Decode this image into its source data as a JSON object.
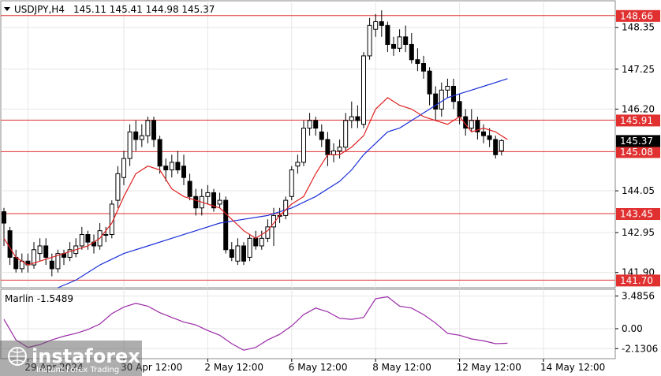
{
  "chart_data": [
    {
      "type": "candlestick",
      "symbol": "USDJPY,H4",
      "ohlc_header": "145.11 145.41 144.98 145.37",
      "y_range": [
        141.5,
        149.05
      ],
      "y_ticks": [
        "148.35",
        "147.25",
        "146.20",
        "144.05",
        "142.95",
        "141.90"
      ],
      "x_ticks": [
        {
          "label": "29 Apr 2024",
          "index": 4
        },
        {
          "label": "30 Apr 12:00",
          "index": 20
        },
        {
          "label": "2 May 12:00",
          "index": 34
        },
        {
          "label": "6 May 12:00",
          "index": 48
        },
        {
          "label": "8 May 12:00",
          "index": 62
        },
        {
          "label": "12 May 12:00",
          "index": 76
        },
        {
          "label": "14 May 12:00",
          "index": 90
        }
      ],
      "levels": [
        {
          "value": 148.66,
          "label": "148.66"
        },
        {
          "value": 145.91,
          "label": "145.91"
        },
        {
          "value": 145.08,
          "label": "145.08"
        },
        {
          "value": 143.45,
          "label": "143.45"
        },
        {
          "value": 141.7,
          "label": "141.70"
        }
      ],
      "last_price": {
        "value": 145.37,
        "label": "145.37"
      },
      "candles": [
        [
          143.5,
          143.2,
          143.6,
          142.6
        ],
        [
          143.0,
          142.3,
          143.1,
          142.1
        ],
        [
          142.3,
          142.0,
          142.5,
          141.9
        ],
        [
          142.0,
          142.2,
          142.4,
          141.9
        ],
        [
          142.2,
          142.1,
          142.4,
          141.9
        ],
        [
          142.1,
          142.5,
          142.7,
          142.0
        ],
        [
          142.4,
          142.6,
          142.8,
          142.2
        ],
        [
          142.6,
          142.3,
          142.8,
          142.1
        ],
        [
          142.2,
          142.0,
          142.4,
          141.8
        ],
        [
          142.0,
          142.4,
          142.5,
          141.9
        ],
        [
          142.4,
          142.3,
          142.5,
          142.1
        ],
        [
          142.3,
          142.5,
          142.7,
          142.2
        ],
        [
          142.4,
          142.6,
          142.8,
          142.3
        ],
        [
          142.6,
          142.9,
          143.1,
          142.5
        ],
        [
          142.9,
          142.7,
          143.0,
          142.5
        ],
        [
          142.7,
          142.6,
          142.9,
          142.4
        ],
        [
          142.6,
          143.0,
          143.2,
          142.5
        ],
        [
          142.9,
          142.9,
          143.1,
          142.7
        ],
        [
          142.9,
          143.7,
          143.8,
          142.8
        ],
        [
          143.8,
          144.5,
          144.7,
          143.6
        ],
        [
          144.4,
          144.9,
          145.1,
          144.2
        ],
        [
          144.9,
          145.6,
          145.8,
          144.7
        ],
        [
          145.6,
          145.4,
          145.9,
          145.1
        ],
        [
          145.4,
          145.5,
          145.8,
          145.2
        ],
        [
          145.5,
          145.9,
          146.0,
          145.3
        ],
        [
          145.9,
          145.4,
          146.0,
          145.2
        ],
        [
          145.4,
          144.7,
          145.5,
          144.5
        ],
        [
          144.7,
          144.6,
          144.9,
          144.3
        ],
        [
          144.6,
          144.8,
          145.0,
          144.4
        ],
        [
          144.8,
          144.6,
          145.1,
          144.5
        ],
        [
          144.7,
          144.4,
          145.0,
          144.2
        ],
        [
          144.3,
          143.9,
          144.5,
          143.8
        ],
        [
          143.9,
          143.6,
          144.1,
          143.4
        ],
        [
          143.6,
          143.9,
          144.1,
          143.4
        ],
        [
          143.9,
          144.0,
          144.2,
          143.7
        ],
        [
          144.0,
          143.6,
          144.1,
          143.5
        ],
        [
          143.7,
          143.8,
          144.0,
          143.6
        ],
        [
          143.8,
          142.5,
          143.9,
          142.4
        ],
        [
          142.5,
          142.3,
          142.7,
          142.2
        ],
        [
          142.2,
          142.6,
          142.8,
          142.1
        ],
        [
          142.6,
          142.2,
          142.7,
          142.1
        ],
        [
          142.3,
          142.8,
          142.9,
          142.2
        ],
        [
          142.8,
          142.6,
          143.0,
          142.5
        ],
        [
          142.6,
          142.8,
          143.0,
          142.5
        ],
        [
          142.8,
          143.1,
          143.3,
          142.7
        ],
        [
          143.1,
          143.4,
          143.6,
          142.6
        ],
        [
          143.4,
          143.4,
          143.6,
          143.2
        ],
        [
          143.4,
          143.8,
          143.9,
          143.3
        ],
        [
          143.9,
          144.6,
          144.7,
          143.8
        ],
        [
          144.7,
          144.8,
          145.0,
          144.5
        ],
        [
          144.8,
          145.7,
          145.9,
          144.7
        ],
        [
          145.7,
          145.9,
          146.1,
          145.5
        ],
        [
          145.9,
          145.7,
          146.0,
          145.5
        ],
        [
          145.6,
          145.4,
          145.8,
          145.2
        ],
        [
          145.4,
          145.0,
          145.6,
          144.7
        ],
        [
          145.0,
          145.1,
          145.3,
          144.8
        ],
        [
          145.1,
          145.2,
          145.4,
          144.9
        ],
        [
          145.2,
          145.9,
          146.1,
          145.1
        ],
        [
          145.9,
          146.0,
          146.4,
          145.7
        ],
        [
          146.0,
          145.9,
          146.3,
          145.7
        ],
        [
          145.8,
          147.6,
          147.7,
          145.7
        ],
        [
          147.6,
          148.4,
          148.6,
          147.5
        ],
        [
          148.3,
          148.5,
          148.7,
          148.1
        ],
        [
          148.5,
          148.4,
          148.8,
          148.1
        ],
        [
          148.4,
          147.9,
          148.5,
          147.7
        ],
        [
          147.9,
          147.8,
          148.1,
          147.6
        ],
        [
          147.8,
          148.1,
          148.3,
          147.7
        ],
        [
          148.1,
          147.9,
          148.4,
          147.7
        ],
        [
          147.9,
          147.5,
          148.2,
          147.4
        ],
        [
          147.5,
          147.4,
          147.8,
          147.2
        ],
        [
          147.4,
          147.2,
          147.6,
          147.0
        ],
        [
          147.2,
          146.6,
          147.3,
          146.3
        ],
        [
          146.6,
          146.2,
          146.8,
          145.9
        ],
        [
          146.2,
          146.7,
          146.9,
          146.0
        ],
        [
          146.7,
          146.8,
          147.0,
          146.5
        ],
        [
          146.8,
          146.4,
          147.0,
          146.2
        ],
        [
          146.4,
          146.0,
          146.6,
          145.8
        ],
        [
          146.0,
          145.7,
          146.2,
          145.5
        ],
        [
          145.7,
          145.9,
          146.2,
          145.6
        ],
        [
          145.9,
          145.6,
          146.0,
          145.4
        ],
        [
          145.6,
          145.5,
          145.8,
          145.3
        ],
        [
          145.5,
          145.4,
          145.7,
          145.2
        ],
        [
          145.4,
          145.0,
          145.5,
          144.9
        ],
        [
          145.1,
          145.37,
          145.41,
          144.98
        ]
      ],
      "ma_fast": [
        [
          0,
          142.8
        ],
        [
          2,
          142.3
        ],
        [
          4,
          142.1
        ],
        [
          6,
          142.2
        ],
        [
          8,
          142.3
        ],
        [
          10,
          142.4
        ],
        [
          12,
          142.5
        ],
        [
          14,
          142.6
        ],
        [
          16,
          142.8
        ],
        [
          18,
          143.2
        ],
        [
          20,
          143.9
        ],
        [
          22,
          144.5
        ],
        [
          24,
          144.7
        ],
        [
          26,
          144.6
        ],
        [
          28,
          144.1
        ],
        [
          30,
          143.9
        ],
        [
          32,
          143.8
        ],
        [
          34,
          143.7
        ],
        [
          36,
          143.6
        ],
        [
          38,
          143.3
        ],
        [
          40,
          143.0
        ],
        [
          42,
          142.8
        ],
        [
          44,
          143.0
        ],
        [
          46,
          143.4
        ],
        [
          48,
          143.7
        ],
        [
          50,
          143.9
        ],
        [
          52,
          144.5
        ],
        [
          54,
          145.0
        ],
        [
          56,
          145.0
        ],
        [
          58,
          145.2
        ],
        [
          60,
          145.5
        ],
        [
          62,
          146.2
        ],
        [
          64,
          146.5
        ],
        [
          66,
          146.3
        ],
        [
          68,
          146.2
        ],
        [
          70,
          146.0
        ],
        [
          72,
          145.9
        ],
        [
          74,
          145.8
        ],
        [
          76,
          146.0
        ],
        [
          78,
          145.6
        ],
        [
          80,
          145.7
        ],
        [
          82,
          145.6
        ],
        [
          84,
          145.4
        ]
      ],
      "ma_slow": [
        [
          9,
          141.5
        ],
        [
          12,
          141.7
        ],
        [
          16,
          142.1
        ],
        [
          20,
          142.4
        ],
        [
          24,
          142.6
        ],
        [
          28,
          142.8
        ],
        [
          32,
          143.0
        ],
        [
          36,
          143.2
        ],
        [
          40,
          143.3
        ],
        [
          44,
          143.4
        ],
        [
          48,
          143.6
        ],
        [
          52,
          143.9
        ],
        [
          56,
          144.3
        ],
        [
          58,
          144.6
        ],
        [
          60,
          145.0
        ],
        [
          62,
          145.3
        ],
        [
          64,
          145.6
        ],
        [
          66,
          145.7
        ],
        [
          68,
          145.9
        ],
        [
          70,
          146.1
        ],
        [
          72,
          146.3
        ],
        [
          74,
          146.5
        ],
        [
          76,
          146.6
        ],
        [
          78,
          146.7
        ],
        [
          80,
          146.8
        ],
        [
          82,
          146.9
        ],
        [
          84,
          147.0
        ]
      ]
    },
    {
      "type": "line",
      "indicator_label": "Marlin -1.5489",
      "y_range": [
        -3.2,
        4.2
      ],
      "y_ticks": [
        "3.4856",
        "0.00",
        "-2.1306"
      ],
      "values": [
        [
          0,
          1.0
        ],
        [
          2,
          -1.2
        ],
        [
          4,
          -2.0
        ],
        [
          6,
          -1.7
        ],
        [
          8,
          -1.2
        ],
        [
          10,
          -0.8
        ],
        [
          12,
          -0.5
        ],
        [
          14,
          -0.1
        ],
        [
          16,
          0.5
        ],
        [
          18,
          1.6
        ],
        [
          20,
          2.3
        ],
        [
          22,
          2.7
        ],
        [
          24,
          2.4
        ],
        [
          26,
          1.7
        ],
        [
          28,
          1.2
        ],
        [
          30,
          0.7
        ],
        [
          32,
          0.4
        ],
        [
          34,
          -0.2
        ],
        [
          36,
          -0.7
        ],
        [
          38,
          -1.6
        ],
        [
          40,
          -2.3
        ],
        [
          42,
          -2.0
        ],
        [
          44,
          -1.2
        ],
        [
          46,
          -0.6
        ],
        [
          48,
          0.3
        ],
        [
          50,
          1.5
        ],
        [
          52,
          2.2
        ],
        [
          54,
          1.8
        ],
        [
          56,
          1.1
        ],
        [
          58,
          1.0
        ],
        [
          60,
          1.2
        ],
        [
          62,
          3.2
        ],
        [
          64,
          3.4
        ],
        [
          66,
          2.4
        ],
        [
          68,
          2.2
        ],
        [
          70,
          1.5
        ],
        [
          72,
          0.6
        ],
        [
          74,
          -0.5
        ],
        [
          76,
          -0.7
        ],
        [
          78,
          -1.1
        ],
        [
          80,
          -1.3
        ],
        [
          82,
          -1.6
        ],
        [
          84,
          -1.5489
        ]
      ]
    }
  ],
  "colors": {
    "bull_candle": "#ffffff",
    "bear_candle": "#000000",
    "ma_fast": "#e02020",
    "ma_slow": "#1a2fd8",
    "marlin": "#9b2aa8",
    "level_line": "#e03030",
    "badge_red": "#e03030",
    "badge_black": "#000000"
  },
  "watermark": {
    "brand": "instaforex",
    "tagline": "Instant Forex Trading"
  }
}
